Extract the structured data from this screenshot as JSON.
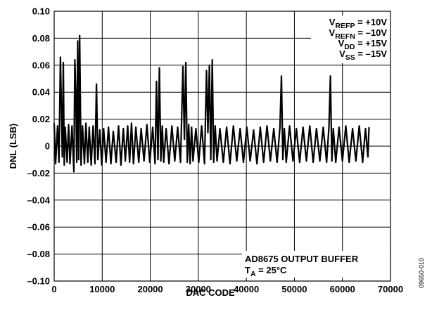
{
  "chart_data": {
    "type": "line",
    "xlabel": "DAC CODE",
    "ylabel": "DNL (LSB)",
    "xlim": [
      0,
      70000
    ],
    "ylim": [
      -0.1,
      0.1
    ],
    "x_ticks": [
      "0",
      "10000",
      "20000",
      "30000",
      "40000",
      "50000",
      "60000",
      "70000"
    ],
    "y_ticks": [
      "0.10",
      "0.08",
      "0.06",
      "0.04",
      "0.02",
      "0",
      "–0.02",
      "–0.04",
      "–0.06",
      "–0.08",
      "–0.10"
    ],
    "grid": true,
    "series": [
      {
        "color": "#000000",
        "x": [
          0,
          300,
          700,
          1000,
          1300,
          1700,
          1900,
          2100,
          2300,
          2700,
          3000,
          3300,
          3700,
          4100,
          4300,
          4500,
          4700,
          4900,
          5100,
          5300,
          5600,
          5900,
          6300,
          6600,
          7000,
          7300,
          7700,
          8100,
          8500,
          8800,
          9100,
          9500,
          9900,
          10300,
          10800,
          11300,
          11800,
          12300,
          12900,
          13400,
          13900,
          14400,
          14800,
          15300,
          15700,
          16100,
          16500,
          17000,
          17600,
          18100,
          18700,
          19300,
          19900,
          20500,
          21000,
          21300,
          21600,
          21900,
          22200,
          22500,
          22800,
          23300,
          23900,
          24500,
          25100,
          25700,
          26300,
          26800,
          27100,
          27400,
          27700,
          28000,
          28300,
          28600,
          28900,
          29500,
          30100,
          30700,
          31300,
          31700,
          32000,
          32300,
          32600,
          32900,
          33200,
          33500,
          33900,
          34500,
          35200,
          35900,
          36600,
          37300,
          38000,
          38700,
          39400,
          40100,
          40800,
          41500,
          42200,
          42900,
          43600,
          44300,
          45000,
          45700,
          46400,
          47000,
          47300,
          47600,
          47900,
          48300,
          49000,
          49700,
          50400,
          51100,
          51800,
          52500,
          53200,
          53900,
          54600,
          55300,
          56000,
          56700,
          57200,
          57500,
          57800,
          58100,
          58600,
          59300,
          60000,
          60700,
          61400,
          62100,
          62800,
          63500,
          64200,
          64800,
          65300,
          65535
        ],
        "values": [
          0.017,
          -0.013,
          0.015,
          -0.012,
          0.066,
          -0.008,
          0.062,
          -0.014,
          0.014,
          -0.012,
          0.016,
          -0.013,
          0.015,
          -0.019,
          0.064,
          0.04,
          -0.012,
          0.078,
          -0.01,
          0.082,
          -0.014,
          0.015,
          -0.013,
          0.017,
          -0.012,
          0.014,
          -0.014,
          0.015,
          -0.013,
          0.046,
          -0.01,
          0.012,
          -0.014,
          0.013,
          -0.012,
          0.014,
          -0.013,
          0.011,
          -0.012,
          0.015,
          -0.014,
          0.013,
          -0.011,
          0.015,
          -0.012,
          0.017,
          -0.013,
          0.014,
          -0.012,
          0.013,
          -0.011,
          0.016,
          -0.012,
          0.014,
          -0.013,
          0.048,
          -0.01,
          0.058,
          -0.011,
          0.015,
          -0.012,
          0.013,
          -0.013,
          0.015,
          -0.011,
          0.014,
          -0.012,
          0.059,
          0.005,
          0.062,
          -0.012,
          0.016,
          -0.013,
          0.014,
          -0.011,
          0.013,
          -0.012,
          0.015,
          -0.013,
          0.056,
          0.01,
          0.06,
          -0.01,
          0.064,
          -0.012,
          0.015,
          -0.011,
          0.013,
          -0.012,
          0.014,
          -0.013,
          0.015,
          -0.011,
          0.013,
          -0.012,
          0.014,
          -0.011,
          0.012,
          -0.013,
          0.014,
          -0.012,
          0.015,
          -0.011,
          0.013,
          -0.012,
          0.014,
          0.052,
          -0.01,
          0.013,
          -0.012,
          0.015,
          -0.011,
          0.013,
          -0.012,
          0.014,
          -0.011,
          0.015,
          -0.012,
          0.013,
          -0.011,
          0.014,
          -0.012,
          0.015,
          0.052,
          -0.011,
          0.013,
          -0.012,
          0.014,
          -0.011,
          0.015,
          -0.012,
          0.013,
          -0.011,
          0.015,
          -0.012,
          0.013,
          -0.008,
          0.014
        ]
      }
    ]
  },
  "annotations": {
    "conditions": [
      {
        "base": "V",
        "sub": "REFP",
        "rest": " = +10V"
      },
      {
        "base": "V",
        "sub": "REFN",
        "rest": " = –10V"
      },
      {
        "base": "V",
        "sub": "DD",
        "rest": " = +15V"
      },
      {
        "base": "V",
        "sub": "SS",
        "rest": " = –15V"
      }
    ],
    "buffer_label": "AD8675 OUTPUT BUFFER",
    "temperature": {
      "base": "T",
      "sub": "A",
      "rest": " = 25°C"
    }
  },
  "figure_code": "09650-010"
}
